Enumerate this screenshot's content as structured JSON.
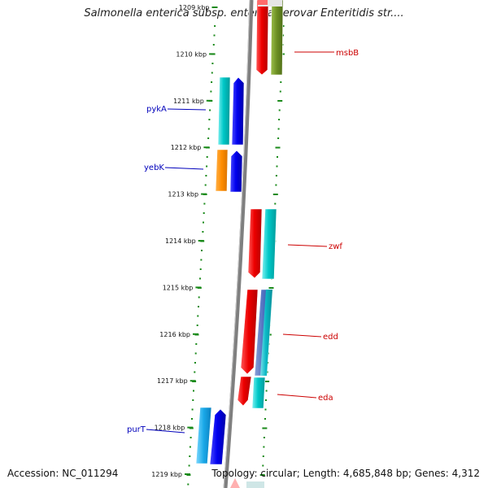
{
  "map": {
    "title": "Salmonella enterica subsp. enterica serovar Enteritidis str....",
    "accession_label": "Accession: NC_011294",
    "summary_label": "Topology: circular; Length: 4,685,848 bp; Genes: 4,312"
  },
  "ticks": [
    {
      "kbp": 1209,
      "label": "1209 kbp"
    },
    {
      "kbp": 1210,
      "label": "1210 kbp"
    },
    {
      "kbp": 1211,
      "label": "1211 kbp"
    },
    {
      "kbp": 1212,
      "label": "1212 kbp"
    },
    {
      "kbp": 1213,
      "label": "1213 kbp"
    },
    {
      "kbp": 1214,
      "label": "1214 kbp"
    },
    {
      "kbp": 1215,
      "label": "1215 kbp"
    },
    {
      "kbp": 1216,
      "label": "1216 kbp"
    },
    {
      "kbp": 1217,
      "label": "1217 kbp"
    },
    {
      "kbp": 1218,
      "label": "1218 kbp"
    },
    {
      "kbp": 1219,
      "label": "1219 kbp"
    }
  ],
  "genes": [
    {
      "name": "msbB",
      "color": "#cc0000"
    },
    {
      "name": "pykA",
      "color": "#0000bb"
    },
    {
      "name": "yebK",
      "color": "#0000bb"
    },
    {
      "name": "zwf",
      "color": "#cc0000"
    },
    {
      "name": "edd",
      "color": "#cc0000"
    },
    {
      "name": "eda",
      "color": "#cc0000"
    },
    {
      "name": "purT",
      "color": "#0000bb"
    }
  ],
  "colors": {
    "backbone": "#7f7f7f",
    "tick_dot": "#1a8a1a",
    "red_feature": "#ee0000",
    "blue_feature": "#0000ee",
    "cyan_feature": "#00c8c8",
    "olive_feature": "#6b8e23",
    "orange_feature": "#ff8c00"
  }
}
